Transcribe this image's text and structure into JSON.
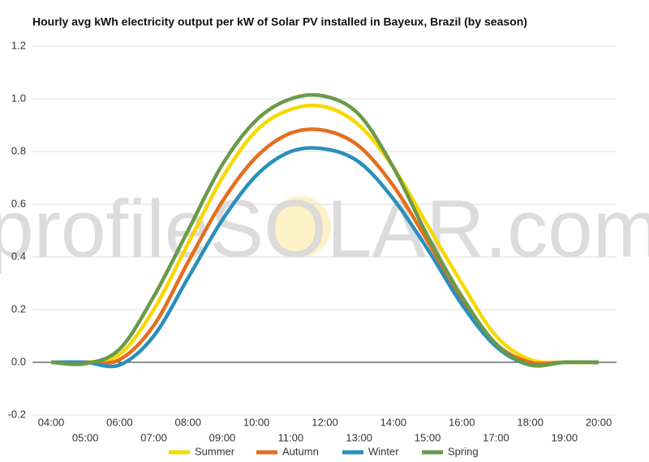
{
  "chart_data": {
    "type": "line",
    "title": "Hourly avg kWh electricity output per kW of Solar PV installed in Bayeux, Brazil (by season)",
    "watermark": "profileSOLAR.com",
    "categories": [
      "04:00",
      "05:00",
      "06:00",
      "07:00",
      "08:00",
      "09:00",
      "10:00",
      "11:00",
      "12:00",
      "13:00",
      "14:00",
      "15:00",
      "16:00",
      "17:00",
      "18:00",
      "19:00",
      "20:00"
    ],
    "series": [
      {
        "name": "Summer",
        "color": "#f7d800",
        "values": [
          0,
          0,
          0.03,
          0.2,
          0.45,
          0.7,
          0.88,
          0.96,
          0.97,
          0.9,
          0.74,
          0.52,
          0.3,
          0.1,
          0.01,
          0,
          0
        ]
      },
      {
        "name": "Autumn",
        "color": "#e36f1e",
        "values": [
          0,
          0,
          0.01,
          0.14,
          0.38,
          0.61,
          0.78,
          0.87,
          0.88,
          0.82,
          0.67,
          0.46,
          0.24,
          0.07,
          0,
          0,
          0
        ]
      },
      {
        "name": "Winter",
        "color": "#2a8fbd",
        "values": [
          0,
          0,
          -0.01,
          0.1,
          0.32,
          0.54,
          0.71,
          0.8,
          0.81,
          0.76,
          0.62,
          0.43,
          0.22,
          0.06,
          -0.01,
          0,
          0
        ]
      },
      {
        "name": "Spring",
        "color": "#6a9a4a",
        "values": [
          0,
          -0.005,
          0.05,
          0.25,
          0.5,
          0.75,
          0.92,
          1.0,
          1.01,
          0.94,
          0.74,
          0.48,
          0.25,
          0.07,
          -0.01,
          0,
          0
        ]
      }
    ],
    "ylim": [
      -0.2,
      1.2
    ],
    "yticks": [
      -0.2,
      {
        "value": 0,
        "label": "0.0"
      },
      0.2,
      0.4,
      0.6,
      0.8,
      {
        "value": 1,
        "label": "1.0"
      },
      1.2
    ],
    "grid": true
  }
}
